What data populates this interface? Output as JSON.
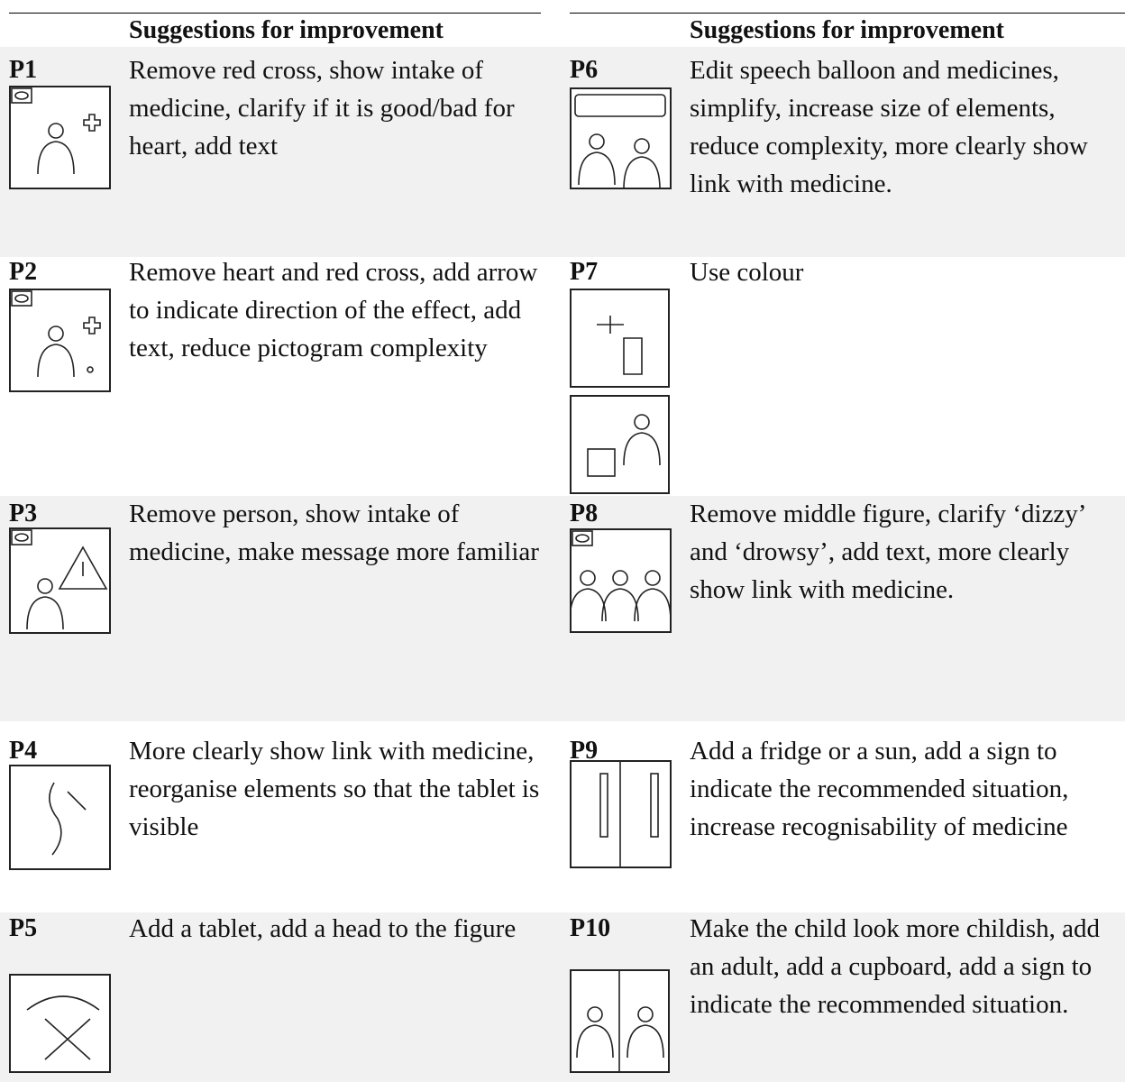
{
  "header": {
    "left": "Suggestions for improvement",
    "right": "Suggestions for improvement"
  },
  "table": {
    "rows": [
      {
        "left": {
          "label": "P1",
          "text": "Remove red cross, show intake of medicine, clarify if it is good/bad for heart, add text"
        },
        "right": {
          "label": "P6",
          "text": "Edit speech balloon and medicines, simplify, increase size of elements, reduce complexity, more clearly show link with medicine."
        }
      },
      {
        "left": {
          "label": "P2",
          "text": "Remove heart and red cross, add arrow to indicate direction of the effect, add text, reduce pictogram complexity"
        },
        "right": {
          "label": "P7",
          "text": "Use colour"
        }
      },
      {
        "left": {
          "label": "P3",
          "text": "Remove person, show intake of medicine, make message more familiar"
        },
        "right": {
          "label": "P8",
          "text": "Remove middle figure, clarify ‘dizzy’ and ‘drowsy’, add text, more clearly show link with medicine."
        }
      },
      {
        "left": {
          "label": "P4",
          "text": "More clearly show link with medicine, reorganise elements so that the tablet is visible"
        },
        "right": {
          "label": "P9",
          "text": "Add a fridge or a sun, add a sign to indicate the recommended situation, increase recognisability of medicine"
        }
      },
      {
        "left": {
          "label": "P5",
          "text": "Add a tablet, add a head to the figure"
        },
        "right": {
          "label": "P10",
          "text": "Make the child look more childish, add an adult, add a cupboard, add a sign to indicate the recommended situation."
        }
      }
    ]
  }
}
